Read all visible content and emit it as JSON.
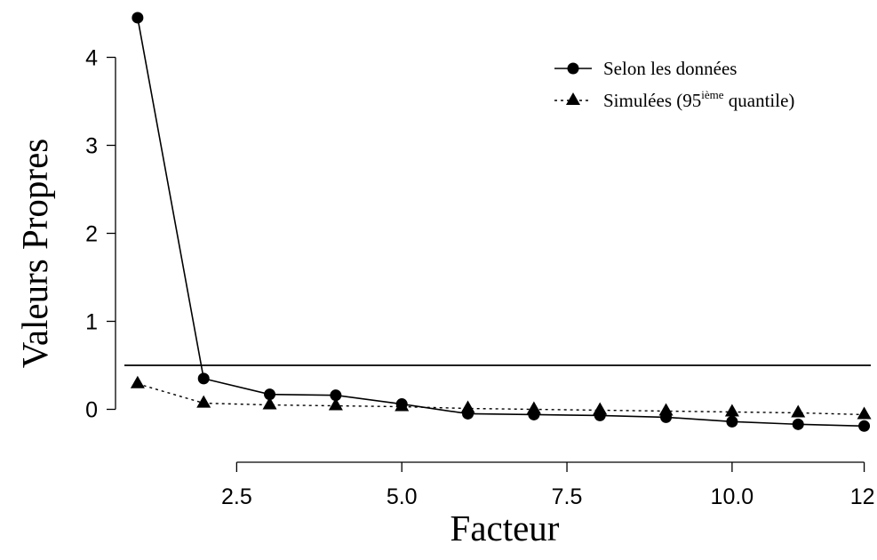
{
  "chart_data": {
    "type": "line",
    "xlabel": "Facteur",
    "ylabel": "Valeurs Propres",
    "xlim": [
      0.8,
      12.1
    ],
    "ylim": [
      -0.5,
      4.5
    ],
    "x_ticks": [
      2.5,
      5.0,
      7.5,
      10.0,
      12
    ],
    "x_tick_labels": [
      "2.5",
      "5.0",
      "7.5",
      "10.0",
      "12"
    ],
    "y_ticks": [
      0,
      1,
      2,
      3,
      4
    ],
    "y_tick_labels": [
      "0",
      "1",
      "2",
      "3",
      "4"
    ],
    "reference_line": 0.5,
    "legend_position": "top-right",
    "grid": false,
    "series": [
      {
        "name": "Selon les données",
        "marker": "circle",
        "line_style": "solid",
        "x": [
          1,
          2,
          3,
          4,
          5,
          6,
          7,
          8,
          9,
          10,
          11,
          12
        ],
        "values": [
          4.45,
          0.35,
          0.17,
          0.16,
          0.06,
          -0.05,
          -0.06,
          -0.07,
          -0.09,
          -0.14,
          -0.17,
          -0.19
        ]
      },
      {
        "name": "Simulées (95ième quantile)",
        "marker": "triangle",
        "line_style": "dotted",
        "x": [
          1,
          2,
          3,
          4,
          5,
          6,
          7,
          8,
          9,
          10,
          11,
          12
        ],
        "values": [
          0.29,
          0.07,
          0.05,
          0.04,
          0.03,
          0.01,
          0.0,
          -0.01,
          -0.02,
          -0.03,
          -0.04,
          -0.06
        ]
      }
    ]
  },
  "legend": {
    "series1_label": "Selon les données",
    "series2_main": "Simulées (95",
    "series2_sup": "ième",
    "series2_tail": " quantile)"
  }
}
